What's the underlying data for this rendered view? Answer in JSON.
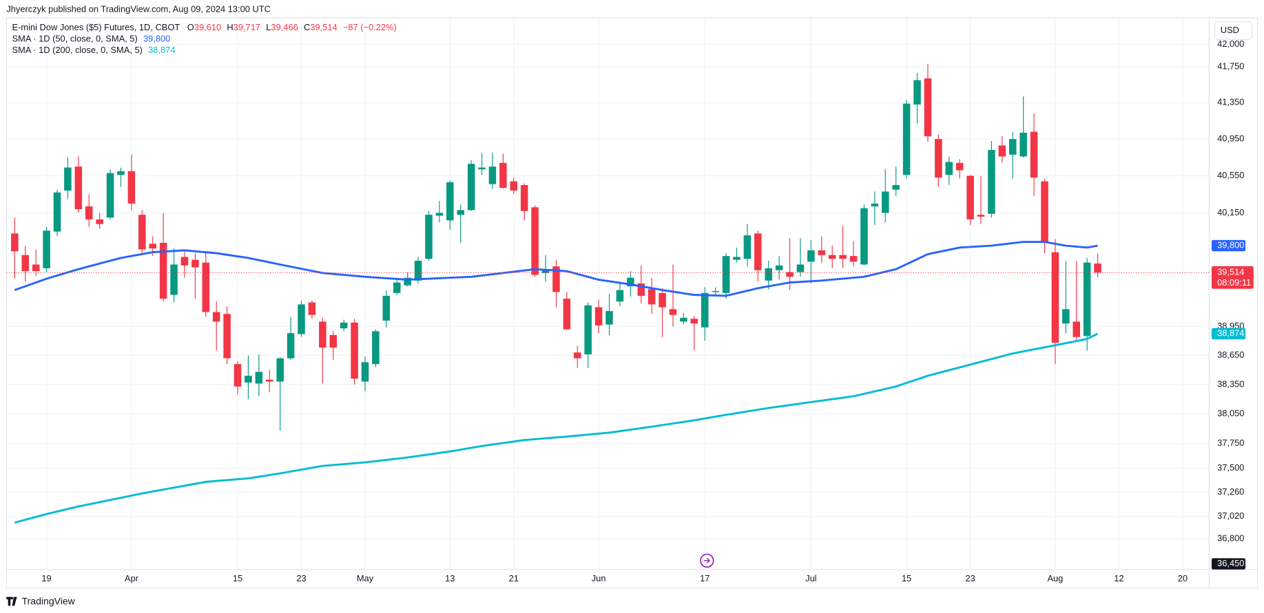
{
  "header": {
    "publisher": "Jhyerczyk published on TradingView.com, Aug 09, 2024 13:00 UTC",
    "currency": "USD",
    "footer": "TradingView",
    "axis_bottom_label": "36,450"
  },
  "legend": {
    "symbol": "E-mini Dow Jones ($5) Futures, 1D, CBOT",
    "ohlc": [
      {
        "key": "O",
        "value": "39,610"
      },
      {
        "key": "H",
        "value": "39,717"
      },
      {
        "key": "L",
        "value": "39,466"
      },
      {
        "key": "C",
        "value": "39,514"
      }
    ],
    "change": "−87 (−0.22%)",
    "series_values": [
      "39,800",
      "38,874"
    ]
  },
  "chart_data": {
    "type": "candlestick",
    "open": [
      39930,
      39700,
      39600,
      39560,
      39950,
      40390,
      40650,
      40220,
      40080,
      40100,
      40560,
      40600,
      40130,
      39820,
      39830,
      39280,
      39680,
      39650,
      39620,
      39100,
      39080,
      38560,
      38370,
      38360,
      38400,
      38380,
      38620,
      38870,
      39200,
      39000,
      38860,
      38930,
      38990,
      38380,
      38560,
      39010,
      39300,
      39380,
      39430,
      39660,
      40120,
      40070,
      40130,
      40180,
      40620,
      40460,
      40690,
      40490,
      40450,
      40210,
      39510,
      39580,
      39240,
      38680,
      38660,
      39150,
      38970,
      39210,
      39370,
      39400,
      39340,
      39300,
      39130,
      39000,
      39030,
      38940,
      39310,
      39300,
      39650,
      39660,
      39930,
      39430,
      39540,
      39520,
      39520,
      39630,
      39750,
      39700,
      39700,
      39690,
      39600,
      40220,
      40150,
      40400,
      40560,
      41330,
      41620,
      40950,
      40560,
      40690,
      40550,
      40130,
      40140,
      40880,
      40780,
      40760,
      41030,
      40490,
      39730,
      38980,
      39000,
      38850,
      39610
    ],
    "high": [
      40100,
      39800,
      39760,
      40000,
      40400,
      40750,
      40760,
      40350,
      40150,
      40620,
      40640,
      40780,
      40180,
      39900,
      40150,
      39770,
      39750,
      39720,
      39720,
      39210,
      39160,
      38590,
      38650,
      38660,
      38500,
      38630,
      39050,
      39220,
      39220,
      39040,
      38900,
      39020,
      39030,
      38640,
      38920,
      39330,
      39440,
      39520,
      39680,
      40170,
      40280,
      40500,
      40240,
      40720,
      40800,
      40800,
      40790,
      40530,
      40470,
      40230,
      39700,
      39650,
      39310,
      38750,
      39200,
      39230,
      39290,
      39420,
      39530,
      39590,
      39460,
      39350,
      39600,
      39090,
      39060,
      39360,
      39360,
      39720,
      39780,
      40030,
      39960,
      39640,
      39690,
      39880,
      39880,
      39860,
      39900,
      39800,
      40010,
      39850,
      40240,
      40380,
      40620,
      40650,
      41380,
      41680,
      41780,
      41000,
      40760,
      40730,
      40560,
      40550,
      40930,
      40980,
      41030,
      41420,
      41230,
      40520,
      39870,
      39640,
      39640,
      39670,
      39717
    ],
    "low": [
      39450,
      39420,
      39480,
      39520,
      39900,
      40300,
      40150,
      40000,
      39980,
      40080,
      40430,
      40180,
      39700,
      39690,
      39210,
      39200,
      39460,
      39240,
      39050,
      38700,
      38560,
      38250,
      38200,
      38230,
      38270,
      37880,
      38600,
      38840,
      39030,
      38360,
      38600,
      38900,
      38350,
      38280,
      38530,
      38940,
      39280,
      39370,
      39400,
      39640,
      40050,
      39970,
      39830,
      40170,
      40560,
      40410,
      40410,
      40350,
      40070,
      39470,
      39420,
      39150,
      38910,
      38520,
      38520,
      38880,
      38860,
      39160,
      39260,
      39190,
      39080,
      38840,
      38950,
      38970,
      38700,
      38800,
      39280,
      39240,
      39620,
      39580,
      39420,
      39340,
      39440,
      39330,
      39470,
      39400,
      39620,
      39560,
      39560,
      39580,
      39590,
      40020,
      40050,
      40330,
      40520,
      41120,
      40920,
      40430,
      40450,
      40520,
      40020,
      40030,
      40100,
      40690,
      40520,
      40750,
      40330,
      39720,
      38560,
      38880,
      38790,
      38700,
      39466
    ],
    "close": [
      39740,
      39530,
      39530,
      39960,
      40370,
      40640,
      40190,
      40080,
      40030,
      40580,
      40600,
      40250,
      39760,
      39770,
      39240,
      39600,
      39590,
      39570,
      39100,
      39000,
      38620,
      38330,
      38440,
      38480,
      38380,
      38620,
      38880,
      39180,
      39070,
      38730,
      38730,
      38990,
      38410,
      38580,
      38900,
      39270,
      39410,
      39460,
      39640,
      40130,
      40150,
      40480,
      40180,
      40680,
      40640,
      40650,
      40420,
      40390,
      40170,
      39490,
      39540,
      39310,
      38920,
      38620,
      39170,
      38960,
      39110,
      39330,
      39460,
      39270,
      39180,
      39150,
      39070,
      39040,
      38980,
      39300,
      39320,
      39690,
      39680,
      39910,
      39540,
      39560,
      39590,
      39470,
      39600,
      39750,
      39700,
      39660,
      39660,
      39630,
      40200,
      40250,
      40380,
      40450,
      41340,
      41600,
      40980,
      40530,
      40700,
      40610,
      40080,
      40110,
      40830,
      40760,
      40950,
      41020,
      40530,
      39830,
      38780,
      39130,
      38840,
      39620,
      39514
    ],
    "up_color": "#089981",
    "down_color": "#f23645",
    "xlim": [
      -0.7,
      112.5
    ],
    "xticks": [
      {
        "value": 3,
        "label": "19"
      },
      {
        "value": 11,
        "label": "Apr"
      },
      {
        "value": 21,
        "label": "15"
      },
      {
        "value": 27,
        "label": "23"
      },
      {
        "value": 33,
        "label": "May"
      },
      {
        "value": 41,
        "label": "13"
      },
      {
        "value": 47,
        "label": "21"
      },
      {
        "value": 55,
        "label": "Jun"
      },
      {
        "value": 65,
        "label": "17"
      },
      {
        "value": 75,
        "label": "Jul"
      },
      {
        "value": 84,
        "label": "15"
      },
      {
        "value": 90,
        "label": "23"
      },
      {
        "value": 98,
        "label": "Aug"
      },
      {
        "value": 104,
        "label": "12"
      },
      {
        "value": 110,
        "label": "20"
      }
    ],
    "ylim": [
      36500,
      42300
    ],
    "log_scale": true,
    "yticks": [
      {
        "value": 42000,
        "label": "42,000"
      },
      {
        "value": 41750,
        "label": "41,750"
      },
      {
        "value": 41350,
        "label": "41,350"
      },
      {
        "value": 40950,
        "label": "40,950"
      },
      {
        "value": 40550,
        "label": "40,550"
      },
      {
        "value": 40150,
        "label": "40,150"
      },
      {
        "value": 38950,
        "label": "38,950"
      },
      {
        "value": 38650,
        "label": "38,650"
      },
      {
        "value": 38350,
        "label": "38,350"
      },
      {
        "value": 38050,
        "label": "38,050"
      },
      {
        "value": 37750,
        "label": "37,750"
      },
      {
        "value": 37500,
        "label": "37,500"
      },
      {
        "value": 37260,
        "label": "37,260"
      },
      {
        "value": 37020,
        "label": "37,020"
      },
      {
        "value": 36800,
        "label": "36,800"
      }
    ],
    "grid": true,
    "series": [
      {
        "name": "SMA · 1D (50, close, 0, SMA, 5)",
        "color": "#2962ff",
        "x": [
          0,
          3,
          6,
          10,
          13,
          16,
          19,
          22,
          25,
          29,
          33,
          37,
          41,
          43,
          46,
          49,
          52,
          55,
          58,
          61,
          64,
          67,
          70,
          73,
          76,
          80,
          83,
          86,
          89,
          92,
          95,
          97,
          99,
          101,
          102
        ],
        "values": [
          39330,
          39450,
          39550,
          39670,
          39730,
          39750,
          39720,
          39670,
          39600,
          39510,
          39470,
          39440,
          39460,
          39470,
          39510,
          39550,
          39530,
          39440,
          39390,
          39330,
          39280,
          39270,
          39350,
          39410,
          39430,
          39470,
          39550,
          39710,
          39780,
          39800,
          39840,
          39840,
          39800,
          39780,
          39800
        ]
      },
      {
        "name": "SMA · 1D (200, close, 0, SMA, 5)",
        "color": "#00bcd4",
        "x": [
          0,
          3,
          6,
          12,
          18,
          22,
          25,
          29,
          33,
          37,
          41,
          44,
          48,
          52,
          56,
          60,
          64,
          67,
          71,
          75,
          79,
          83,
          86,
          90,
          94,
          98,
          101,
          102
        ],
        "values": [
          36960,
          37045,
          37120,
          37250,
          37365,
          37400,
          37450,
          37525,
          37560,
          37610,
          37670,
          37725,
          37785,
          37820,
          37860,
          37920,
          37985,
          38040,
          38110,
          38170,
          38230,
          38330,
          38440,
          38555,
          38670,
          38755,
          38820,
          38874
        ]
      }
    ],
    "last_price": {
      "value": 39514,
      "label": "39,514"
    },
    "countdown": "08:09:11",
    "price_badges": [
      {
        "value": 39800,
        "label": "39,800",
        "color": "#2962ff"
      },
      {
        "value": 38874,
        "label": "38,874",
        "color": "#00bcd4"
      }
    ]
  }
}
